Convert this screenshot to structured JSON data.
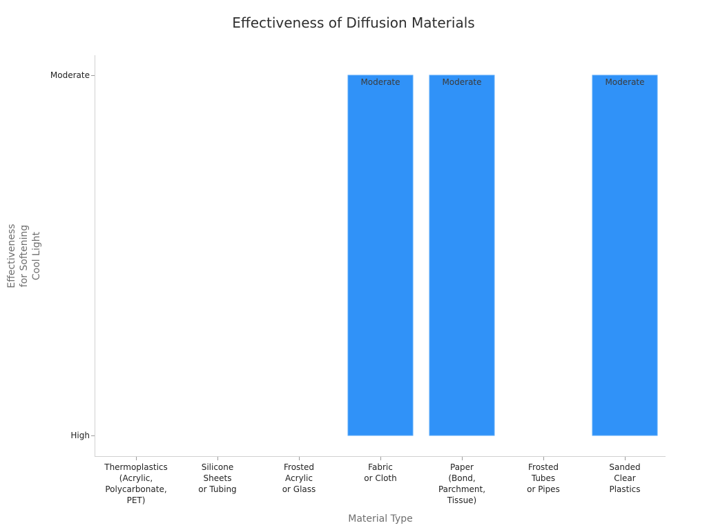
{
  "chart_data": {
    "type": "bar",
    "title": "Effectiveness of Diffusion Materials",
    "xlabel": "Material Type",
    "ylabel": "Effectiveness for Softening Cool Light",
    "categories": [
      "Thermoplastics (Acrylic, Polycarbonate, PET)",
      "Silicone Sheets or Tubing",
      "Frosted Acrylic or Glass",
      "Fabric or Cloth",
      "Paper (Bond, Parchment, Tissue)",
      "Frosted Tubes or Pipes",
      "Sanded Clear Plastics"
    ],
    "y_axis": {
      "type": "categorical",
      "ticks": [
        "High",
        "Moderate"
      ]
    },
    "values": [
      "High",
      "High",
      "High",
      "Moderate",
      "Moderate",
      "High",
      "Moderate"
    ],
    "data_labels": [
      "",
      "",
      "",
      "Moderate",
      "Moderate",
      "",
      "Moderate"
    ],
    "bar_color": "#3092f8",
    "grid": false,
    "legend": "none"
  },
  "labels": {
    "x_tick_lines": [
      [
        "Thermoplastics",
        "(Acrylic,",
        "Polycarbonate,",
        "PET)"
      ],
      [
        "Silicone",
        "Sheets",
        "or Tubing"
      ],
      [
        "Frosted",
        "Acrylic",
        "or Glass"
      ],
      [
        "Fabric",
        "or Cloth"
      ],
      [
        "Paper",
        "(Bond,",
        "Parchment,",
        "Tissue)"
      ],
      [
        "Frosted",
        "Tubes",
        "or Pipes"
      ],
      [
        "Sanded",
        "Clear",
        "Plastics"
      ]
    ],
    "y_title_lines": [
      "Effectiveness",
      "for Softening",
      "Cool Light"
    ]
  }
}
